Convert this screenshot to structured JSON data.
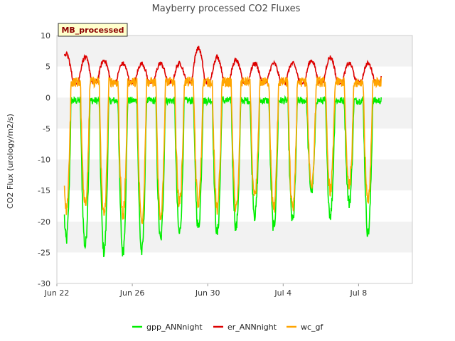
{
  "chart_data": {
    "type": "line",
    "title": "Mayberry processed CO2 Fluxes",
    "ylabel": "CO2 Flux (urology/m2/s)",
    "xlabel": "",
    "badge": "MB_processed",
    "ylim": [
      -30,
      10
    ],
    "yticks": [
      -30,
      -25,
      -20,
      -15,
      -10,
      -5,
      0,
      5,
      10
    ],
    "x_start": "Jun 22",
    "x_end": "Jul 10",
    "xticks": [
      {
        "label": "Jun 22",
        "day": 0
      },
      {
        "label": "Jun 26",
        "day": 4
      },
      {
        "label": "Jun 30",
        "day": 8
      },
      {
        "label": "Jul 4",
        "day": 12
      },
      {
        "label": "Jul 8",
        "day": 16
      }
    ],
    "x_data_range": [
      0.4,
      17.2
    ],
    "grid": "alternating horizontal bands",
    "legend_position": "bottom",
    "series": [
      {
        "name": "gpp_ANNnight",
        "color": "#00ee00",
        "night_level": -0.5,
        "daily_minimum": [
          -23,
          -24,
          -25,
          -25,
          -25,
          -23,
          -22,
          -21,
          -22,
          -21,
          -19,
          -21,
          -20,
          -15,
          -19,
          -17,
          -22
        ]
      },
      {
        "name": "er_ANNnight",
        "color": "#dd0000",
        "night_level": 2.5,
        "daily_maximum": [
          7.0,
          6.5,
          6.0,
          5.5,
          5.5,
          5.5,
          5.5,
          8.0,
          6.5,
          6.0,
          5.5,
          5.5,
          5.5,
          6.0,
          6.5,
          5.5,
          5.5
        ]
      },
      {
        "name": "wc_gf",
        "color": "#ffa500",
        "night_level": 2.5,
        "daily_minimum": [
          -18,
          -17,
          -19,
          -19,
          -20,
          -19,
          -17,
          -17,
          -18,
          -18,
          -16,
          -18,
          -18,
          -14,
          -15,
          -14,
          -17
        ]
      }
    ]
  }
}
